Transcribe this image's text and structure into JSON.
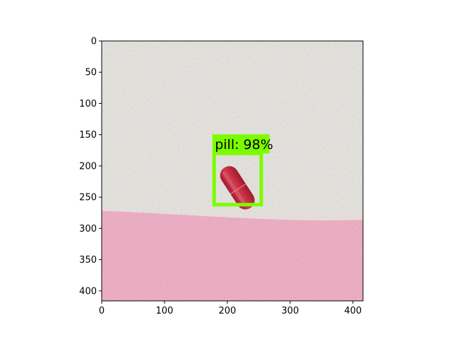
{
  "chart_data": {
    "type": "image",
    "xlim": [
      0,
      416
    ],
    "ylim": [
      416,
      0
    ],
    "xticks": [
      0,
      100,
      200,
      300,
      400
    ],
    "yticks": [
      0,
      50,
      100,
      150,
      200,
      250,
      300,
      350,
      400
    ],
    "grid": false,
    "scene": {
      "upper_region": {
        "description": "off-white textured surface",
        "color": "#dcdad5"
      },
      "lower_region": {
        "description": "pink textured surface",
        "color": "#e7a7bd",
        "boundary_y": [
          272,
          288
        ]
      },
      "object": {
        "name": "red capsule",
        "color": "#c8323f",
        "center": [
          216,
          235
        ]
      }
    },
    "detections": [
      {
        "label": "pill: 98%",
        "class": "pill",
        "score": 0.98,
        "box": {
          "x1": 179,
          "y1": 180,
          "x2": 254,
          "y2": 262
        },
        "color": "#7cfc00"
      }
    ]
  }
}
